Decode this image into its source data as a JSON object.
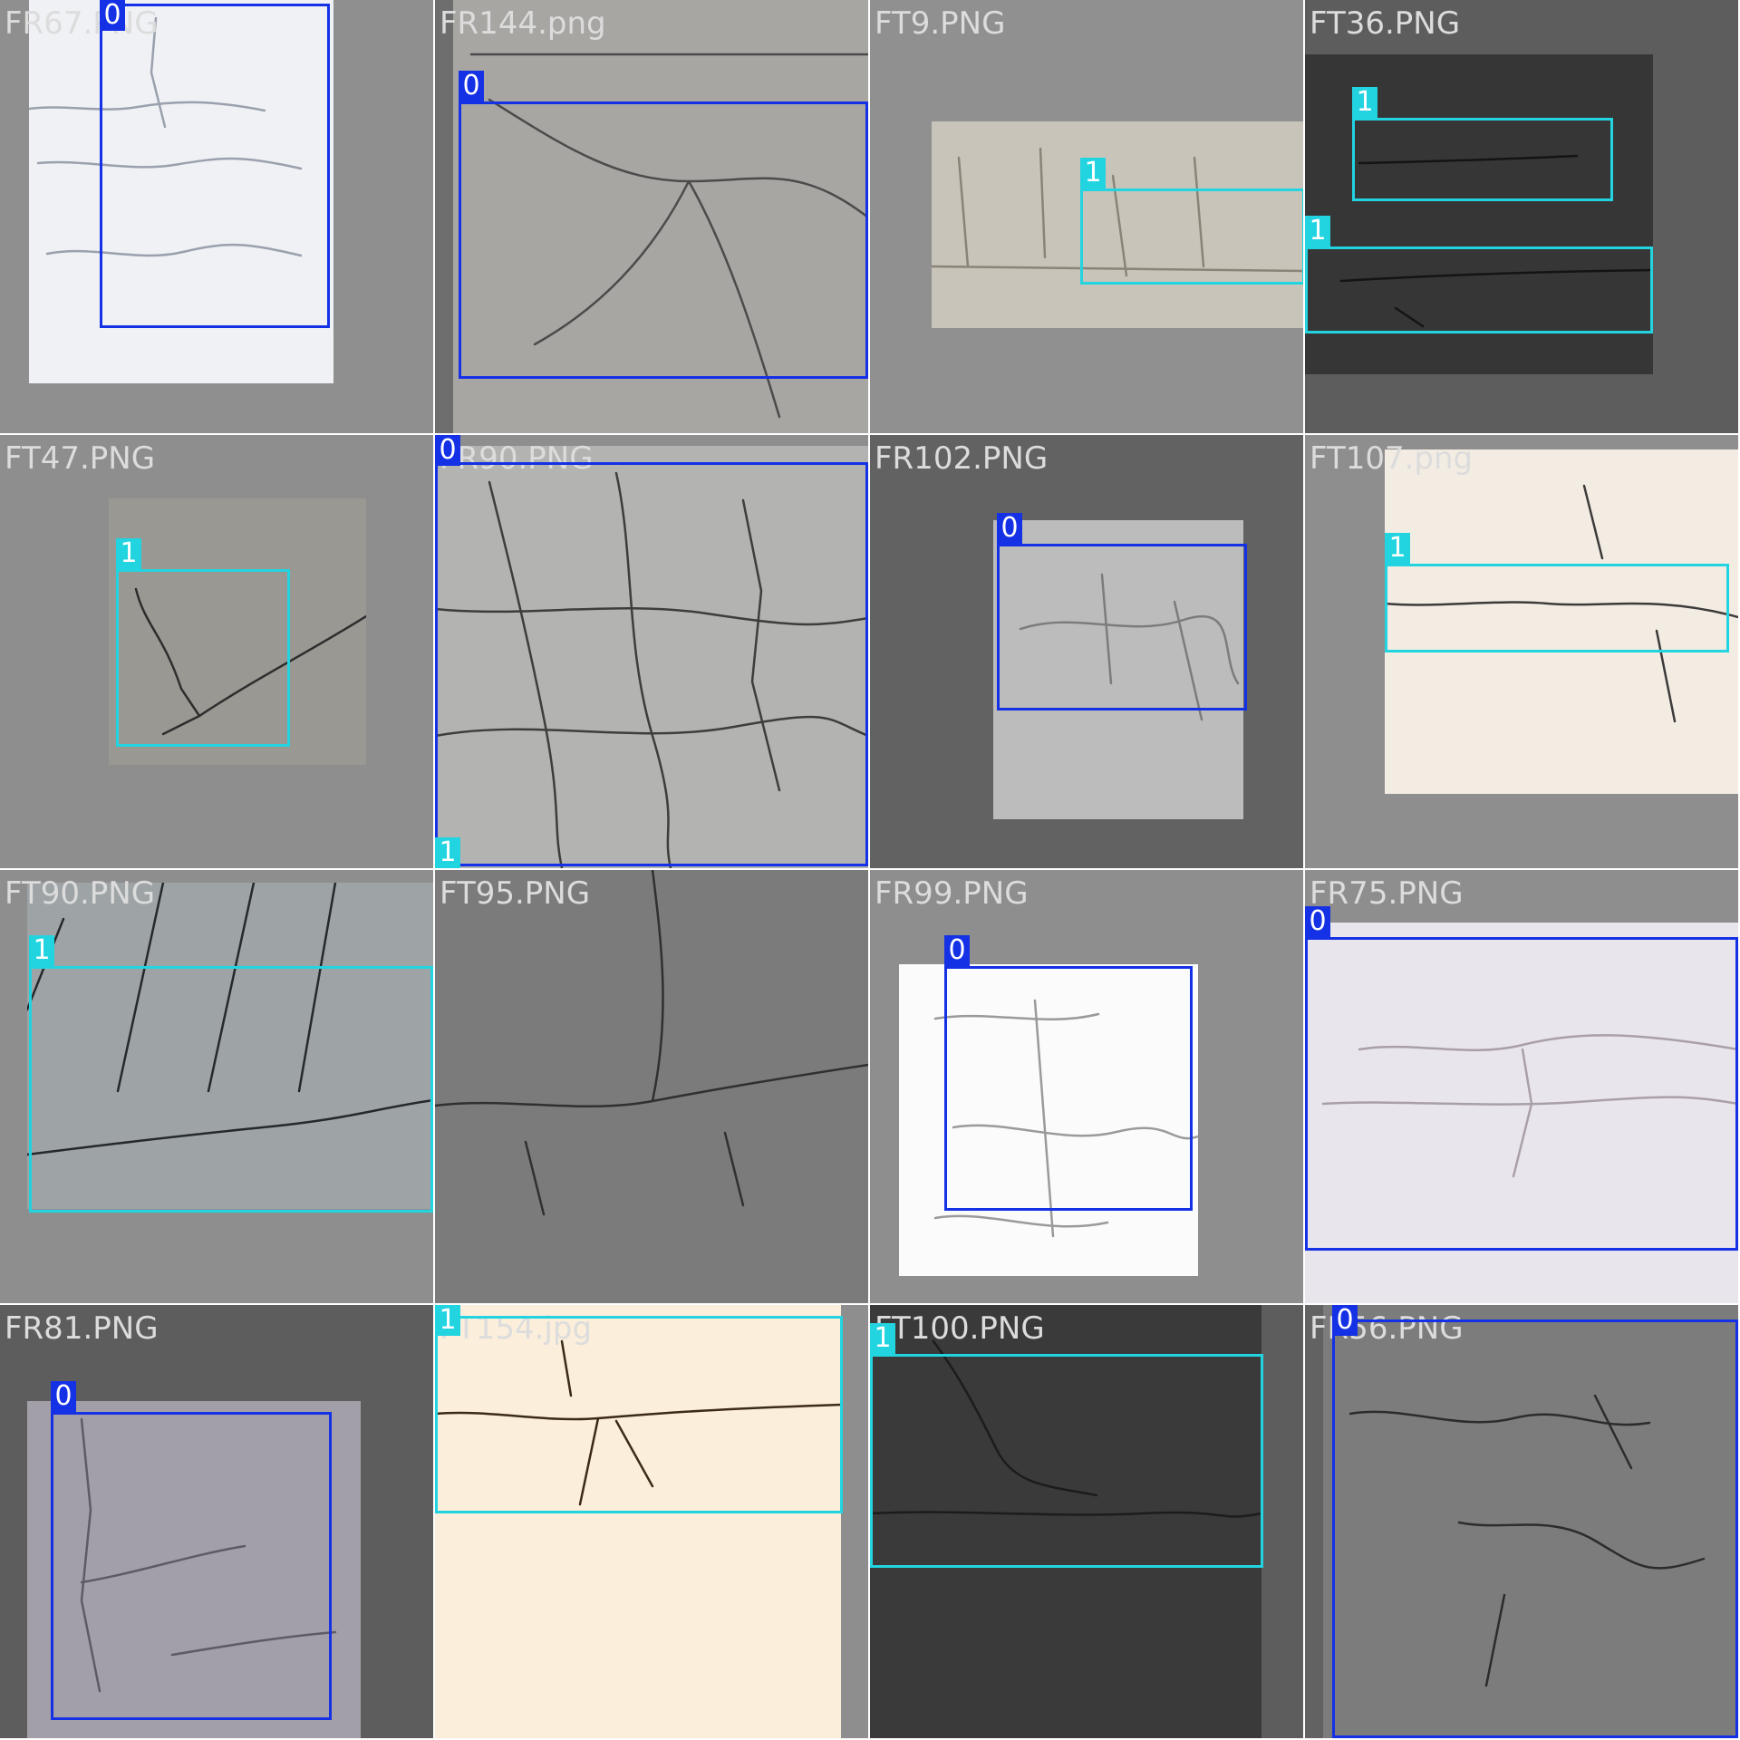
{
  "colors": {
    "class_0": "#1431e6",
    "class_1": "#22d4e0",
    "filename_text": "#dcdcdc"
  },
  "tiles": [
    {
      "filename": "FR67.PNG",
      "bg": "#8f8f8f",
      "photo_tone": "#f0f1f5",
      "crack_color": "#9aa0ad",
      "boxes": [
        {
          "label": "0"
        }
      ]
    },
    {
      "filename": "FR144.png",
      "bg": "#6e6e6e",
      "photo_tone": "#a7a6a3",
      "crack_color": "#4b4b4b",
      "boxes": [
        {
          "label": "0"
        }
      ]
    },
    {
      "filename": "FT9.PNG",
      "bg": "#909090",
      "photo_tone": "#c9c4ba",
      "crack_color": "#8a8478",
      "boxes": [
        {
          "label": "1"
        }
      ]
    },
    {
      "filename": "FT36.PNG",
      "bg": "#5d5d5d",
      "photo_tone": "#363636",
      "crack_color": "#141414",
      "boxes": [
        {
          "label": "1"
        },
        {
          "label": "1"
        }
      ]
    },
    {
      "filename": "FT47.PNG",
      "bg": "#8e8e8e",
      "photo_tone": "#9a9893",
      "crack_color": "#2d2d2d",
      "boxes": [
        {
          "label": "1"
        }
      ]
    },
    {
      "filename": "FR90.PNG",
      "bg": "#8e8e8e",
      "photo_tone": "#b3b3b1",
      "crack_color": "#3d3d3a",
      "boxes": [
        {
          "label": "0"
        },
        {
          "label": "1"
        }
      ]
    },
    {
      "filename": "FR102.PNG",
      "bg": "#626262",
      "photo_tone": "#bcbcbc",
      "crack_color": "#7c7c7c",
      "boxes": [
        {
          "label": "0"
        }
      ]
    },
    {
      "filename": "FT107.png",
      "bg": "#8e8e8e",
      "photo_tone": "#f3ece3",
      "crack_color": "#3b3b3b",
      "boxes": [
        {
          "label": "1"
        }
      ]
    },
    {
      "filename": "FT90.PNG",
      "bg": "#8e8e8e",
      "photo_tone": "#9ea3a6",
      "crack_color": "#25292e",
      "boxes": [
        {
          "label": "1"
        }
      ]
    },
    {
      "filename": "FT95.PNG",
      "bg": "#8e8e8e",
      "photo_tone": "#7a7b7a",
      "crack_color": "#2f3030",
      "boxes": []
    },
    {
      "filename": "FR99.PNG",
      "bg": "#8e8e8e",
      "photo_tone": "#fbfbfb",
      "crack_color": "#9a9a9a",
      "boxes": [
        {
          "label": "0"
        }
      ]
    },
    {
      "filename": "FR75.PNG",
      "bg": "#8e8e8e",
      "photo_tone": "#e8e5ed",
      "crack_color": "#a99fa9",
      "boxes": [
        {
          "label": "0"
        }
      ]
    },
    {
      "filename": "FR81.PNG",
      "bg": "#5d5d5d",
      "photo_tone": "#a39fa8",
      "crack_color": "#5f5b66",
      "boxes": [
        {
          "label": "0"
        }
      ]
    },
    {
      "filename": "FT154.jpg",
      "bg": "#8e8e8e",
      "photo_tone": "#fbeedb",
      "crack_color": "#3b2a18",
      "boxes": [
        {
          "label": "1"
        }
      ]
    },
    {
      "filename": "FT100.PNG",
      "bg": "#5d5d5d",
      "photo_tone": "#3a3a3a",
      "crack_color": "#1c1c1c",
      "boxes": [
        {
          "label": "1"
        }
      ]
    },
    {
      "filename": "FR56.PNG",
      "bg": "#626262",
      "photo_tone": "#7c7c7c",
      "crack_color": "#2c2c2c",
      "boxes": [
        {
          "label": "0"
        }
      ]
    }
  ]
}
